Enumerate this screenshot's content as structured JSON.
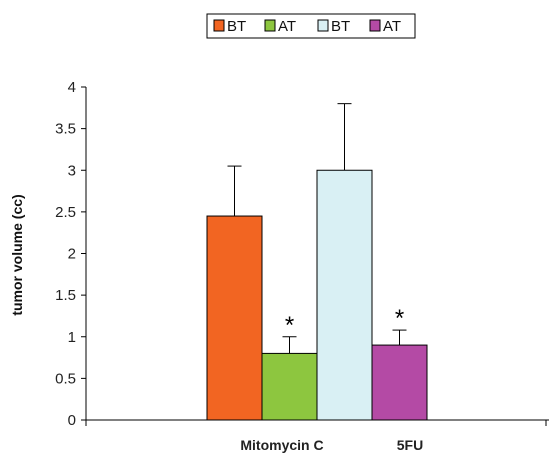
{
  "chart_data": {
    "type": "bar",
    "ylabel": "tumor volume (cc)",
    "ylim": [
      0,
      4
    ],
    "yticks": [
      "0",
      "0.5",
      "1",
      "1.5",
      "2",
      "2.5",
      "3",
      "3.5",
      "4"
    ],
    "categories": [
      "Mitomycin C",
      "5FU"
    ],
    "legend_position": "top",
    "legend": [
      "BT",
      "AT",
      "BT",
      "AT"
    ],
    "bars": [
      {
        "legend": "BT",
        "category": "Mitomycin C",
        "value": 2.45,
        "error": 0.6,
        "color": "#f26522",
        "annotation": ""
      },
      {
        "legend": "AT",
        "category": "Mitomycin C",
        "value": 0.8,
        "error": 0.2,
        "color": "#8dc63f",
        "annotation": "*"
      },
      {
        "legend": "BT",
        "category": "5FU",
        "value": 3.0,
        "error": 0.8,
        "color": "#d9f0f4",
        "annotation": ""
      },
      {
        "legend": "AT",
        "category": "5FU",
        "value": 0.9,
        "error": 0.18,
        "color": "#b44aa5",
        "annotation": "*"
      }
    ]
  }
}
